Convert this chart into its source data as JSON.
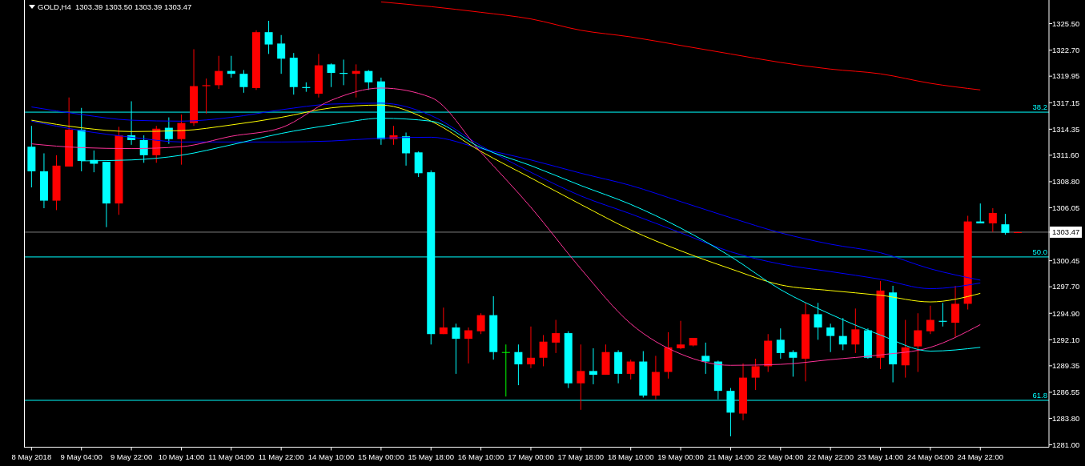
{
  "chart_data": {
    "type": "candlestick",
    "title": "GOLD,H4  1303.39 1303.50 1303.39 1303.47",
    "categories": [
      "8 May 2018",
      null,
      null,
      null,
      "9 May 04:00",
      null,
      null,
      null,
      "9 May 22:00",
      null,
      null,
      null,
      "10 May 14:00",
      null,
      null,
      null,
      "11 May 04:00",
      null,
      null,
      null,
      "11 May 22:00",
      null,
      null,
      null,
      "14 May 10:00",
      null,
      null,
      null,
      "15 May 00:00",
      null,
      null,
      null,
      "15 May 18:00",
      null,
      null,
      null,
      "16 May 10:00",
      null,
      null,
      null,
      "17 May 00:00",
      null,
      null,
      null,
      "17 May 18:00",
      null,
      null,
      null,
      "18 May 10:00",
      null,
      null,
      null,
      "19 May 00:00",
      null,
      null,
      null,
      "21 May 14:00",
      null,
      null,
      null,
      "22 May 04:00",
      null,
      null,
      null,
      "22 May 22:00",
      null,
      null,
      null,
      "23 May 14:00",
      null,
      null,
      null,
      "24 May 04:00",
      null,
      null,
      null,
      "24 May 22:00",
      null,
      null,
      null
    ],
    "ohlc": [
      [
        1312.5,
        1314.7,
        1308.2,
        1309.9
      ],
      [
        1309.9,
        1311.8,
        1306.0,
        1306.8
      ],
      [
        1306.8,
        1311.6,
        1305.8,
        1310.5
      ],
      [
        1310.4,
        1317.7,
        1310.4,
        1314.3
      ],
      [
        1314.3,
        1316.6,
        1309.9,
        1311.0
      ],
      [
        1311.1,
        1312.1,
        1309.8,
        1310.7
      ],
      [
        1310.9,
        1310.9,
        1304.0,
        1306.5
      ],
      [
        1306.5,
        1314.6,
        1305.3,
        1313.7
      ],
      [
        1313.7,
        1317.3,
        1312.7,
        1313.2
      ],
      [
        1313.2,
        1313.7,
        1310.8,
        1311.6
      ],
      [
        1311.6,
        1314.7,
        1310.8,
        1314.4
      ],
      [
        1314.5,
        1315.6,
        1312.8,
        1313.3
      ],
      [
        1313.3,
        1315.9,
        1310.6,
        1315.0
      ],
      [
        1315.0,
        1322.8,
        1314.7,
        1318.9
      ],
      [
        1318.9,
        1319.7,
        1316.0,
        1319.0
      ],
      [
        1319.0,
        1322.1,
        1318.6,
        1320.5
      ],
      [
        1320.5,
        1322.1,
        1319.8,
        1320.2
      ],
      [
        1320.2,
        1320.6,
        1318.2,
        1318.8
      ],
      [
        1318.7,
        1324.8,
        1318.5,
        1324.6
      ],
      [
        1324.6,
        1325.8,
        1322.3,
        1323.3
      ],
      [
        1323.4,
        1324.3,
        1320.2,
        1321.8
      ],
      [
        1321.9,
        1322.4,
        1318.0,
        1318.8
      ],
      [
        1318.8,
        1319.3,
        1318.3,
        1318.7
      ],
      [
        1318.1,
        1322.3,
        1317.7,
        1321.1
      ],
      [
        1321.2,
        1321.3,
        1318.8,
        1320.3
      ],
      [
        1320.3,
        1321.7,
        1319.0,
        1320.2
      ],
      [
        1320.2,
        1321.2,
        1317.7,
        1320.5
      ],
      [
        1320.5,
        1320.6,
        1318.5,
        1319.3
      ],
      [
        1319.4,
        1319.8,
        1312.7,
        1313.3
      ],
      [
        1313.3,
        1314.7,
        1312.7,
        1313.7
      ],
      [
        1313.6,
        1314.0,
        1310.5,
        1311.8
      ],
      [
        1311.9,
        1312.0,
        1309.3,
        1309.7
      ],
      [
        1309.8,
        1310.0,
        1291.6,
        1292.7
      ],
      [
        1292.7,
        1295.5,
        1292.7,
        1293.4
      ],
      [
        1293.4,
        1293.8,
        1288.5,
        1292.2
      ],
      [
        1292.2,
        1293.4,
        1289.6,
        1293.1
      ],
      [
        1293.0,
        1294.9,
        1292.7,
        1294.7
      ],
      [
        1294.7,
        1296.7,
        1290.0,
        1290.8
      ],
      [
        1290.8,
        1291.6,
        1286.1,
        1290.8
      ],
      [
        1290.8,
        1291.6,
        1287.3,
        1289.5
      ],
      [
        1289.5,
        1293.5,
        1289.1,
        1290.2
      ],
      [
        1290.2,
        1292.6,
        1289.3,
        1291.9
      ],
      [
        1291.8,
        1294.2,
        1290.7,
        1292.8
      ],
      [
        1292.8,
        1293.0,
        1287.0,
        1287.5
      ],
      [
        1287.5,
        1291.6,
        1284.7,
        1288.8
      ],
      [
        1288.8,
        1291.2,
        1287.4,
        1288.4
      ],
      [
        1288.4,
        1291.6,
        1288.4,
        1290.8
      ],
      [
        1290.8,
        1291.0,
        1287.5,
        1288.5
      ],
      [
        1288.5,
        1290.0,
        1287.9,
        1289.8
      ],
      [
        1289.8,
        1290.9,
        1286.0,
        1286.2
      ],
      [
        1286.2,
        1290.4,
        1285.8,
        1288.7
      ],
      [
        1288.7,
        1292.9,
        1288.0,
        1291.3
      ],
      [
        1291.2,
        1294.1,
        1291.1,
        1291.6
      ],
      [
        1291.5,
        1292.3,
        1291.4,
        1292.3
      ],
      [
        1290.4,
        1291.8,
        1288.5,
        1289.8
      ],
      [
        1289.8,
        1289.9,
        1285.8,
        1286.7
      ],
      [
        1286.7,
        1287.0,
        1281.9,
        1284.4
      ],
      [
        1284.3,
        1289.6,
        1283.6,
        1288.1
      ],
      [
        1288.1,
        1290.1,
        1286.8,
        1289.3
      ],
      [
        1289.3,
        1292.7,
        1288.7,
        1292.0
      ],
      [
        1292.1,
        1293.3,
        1290.1,
        1290.7
      ],
      [
        1290.8,
        1291.0,
        1288.2,
        1290.2
      ],
      [
        1290.1,
        1296.0,
        1287.7,
        1294.8
      ],
      [
        1294.8,
        1296.0,
        1292.1,
        1293.4
      ],
      [
        1293.4,
        1293.8,
        1290.8,
        1292.5
      ],
      [
        1292.5,
        1294.4,
        1291.0,
        1291.6
      ],
      [
        1291.6,
        1295.4,
        1290.7,
        1293.2
      ],
      [
        1293.1,
        1293.3,
        1290.1,
        1290.2
      ],
      [
        1290.2,
        1298.3,
        1289.0,
        1297.3
      ],
      [
        1297.1,
        1297.8,
        1287.6,
        1289.5
      ],
      [
        1289.4,
        1294.2,
        1288.1,
        1291.3
      ],
      [
        1291.4,
        1294.9,
        1288.7,
        1293.1
      ],
      [
        1293.0,
        1295.7,
        1292.7,
        1294.2
      ],
      [
        1294.1,
        1296.0,
        1293.5,
        1294.0
      ],
      [
        1293.9,
        1297.8,
        1292.4,
        1295.9
      ],
      [
        1295.9,
        1305.2,
        1295.3,
        1304.6
      ],
      [
        1304.6,
        1306.5,
        1304.4,
        1304.4
      ],
      [
        1304.4,
        1306.0,
        1303.5,
        1305.5
      ],
      [
        1304.3,
        1305.4,
        1303.2,
        1303.4
      ],
      [
        1303.39,
        1303.5,
        1303.39,
        1303.47
      ]
    ],
    "colors": [
      "#00ffff",
      "#00ffff",
      "#ff0000",
      "#ff0000",
      "#00ffff",
      "#00ffff",
      "#00ffff",
      "#ff0000",
      "#00ffff",
      "#00ffff",
      "#ff0000",
      "#00ffff",
      "#ff0000",
      "#ff0000",
      "#ff0000",
      "#ff0000",
      "#00ffff",
      "#00ffff",
      "#ff0000",
      "#00ffff",
      "#00ffff",
      "#00ffff",
      "#00ffff",
      "#ff0000",
      "#00ffff",
      "#00ffff",
      "#ff0000",
      "#00ffff",
      "#00ffff",
      "#ff0000",
      "#00ffff",
      "#00ffff",
      "#00ffff",
      "#ff0000",
      "#00ffff",
      "#ff0000",
      "#ff0000",
      "#00ffff",
      "#00ff00",
      "#00ffff",
      "#ff0000",
      "#ff0000",
      "#ff0000",
      "#00ffff",
      "#ff0000",
      "#00ffff",
      "#ff0000",
      "#00ffff",
      "#ff0000",
      "#00ffff",
      "#ff0000",
      "#ff0000",
      "#ff0000",
      "#ff0000",
      "#00ffff",
      "#00ffff",
      "#00ffff",
      "#ff0000",
      "#ff0000",
      "#ff0000",
      "#00ffff",
      "#00ffff",
      "#ff0000",
      "#00ffff",
      "#00ffff",
      "#00ffff",
      "#ff0000",
      "#00ffff",
      "#ff0000",
      "#00ffff",
      "#ff0000",
      "#ff0000",
      "#ff0000",
      "#00ffff",
      "#ff0000",
      "#ff0000",
      "#00ffff",
      "#ff0000",
      "#00ffff",
      "#ff0000"
    ],
    "series": [
      {
        "type": "line",
        "color": "#ff0000",
        "x": [
          "15 May 00:00",
          "15 May 18:00",
          "16 May 10:00",
          "17 May 00:00",
          "17 May 18:00",
          "18 May 10:00",
          "19 May 00:00",
          "21 May 14:00",
          "22 May 04:00",
          "22 May 22:00",
          "23 May 14:00",
          "24 May 04:00",
          "24 May 22:00"
        ],
        "values": [
          1327.8,
          1327.3,
          1326.7,
          1326.0,
          1324.8,
          1324.1,
          1323.2,
          1322.3,
          1321.4,
          1320.7,
          1320.2,
          1319.2,
          1318.5
        ]
      },
      {
        "type": "line",
        "color": "#0000ff",
        "x": [
          "8 May 2018",
          "9 May 04:00",
          "9 May 22:00",
          "10 May 14:00",
          "11 May 04:00",
          "11 May 22:00",
          "14 May 10:00",
          "15 May 00:00",
          "15 May 18:00",
          "16 May 10:00",
          "17 May 00:00",
          "17 May 18:00",
          "18 May 10:00",
          "19 May 00:00",
          "21 May 14:00",
          "22 May 04:00",
          "22 May 22:00",
          "23 May 14:00",
          "24 May 04:00",
          "24 May 22:00"
        ],
        "values": [
          1316.7,
          1315.9,
          1315.3,
          1315.2,
          1315.6,
          1316.4,
          1317.0,
          1317.1,
          1315.8,
          1312.6,
          1309.8,
          1307.3,
          1305.4,
          1303.4,
          1301.4,
          1300.1,
          1299.3,
          1298.5,
          1297.5,
          1298.1
        ]
      },
      {
        "type": "line",
        "color": "#0000ff",
        "x": [
          "8 May 2018",
          "9 May 04:00",
          "9 May 22:00",
          "10 May 14:00",
          "11 May 04:00",
          "11 May 22:00",
          "14 May 10:00",
          "15 May 00:00",
          "15 May 18:00",
          "16 May 10:00",
          "17 May 00:00",
          "17 May 18:00",
          "18 May 10:00",
          "19 May 00:00",
          "21 May 14:00",
          "22 May 04:00",
          "22 May 22:00",
          "23 May 14:00",
          "24 May 04:00",
          "24 May 22:00"
        ],
        "values": [
          1315.2,
          1314.2,
          1313.5,
          1313.0,
          1313.0,
          1313.0,
          1313.1,
          1313.4,
          1313.5,
          1312.3,
          1311.1,
          1309.7,
          1308.4,
          1306.7,
          1305.0,
          1303.4,
          1302.2,
          1301.3,
          1299.6,
          1298.4
        ]
      },
      {
        "type": "line",
        "color": "#ffff00",
        "x": [
          "8 May 2018",
          "9 May 04:00",
          "9 May 22:00",
          "10 May 14:00",
          "11 May 04:00",
          "11 May 22:00",
          "14 May 10:00",
          "15 May 00:00",
          "15 May 18:00",
          "16 May 10:00",
          "17 May 00:00",
          "17 May 18:00",
          "18 May 10:00",
          "19 May 00:00",
          "21 May 14:00",
          "22 May 04:00",
          "22 May 22:00",
          "23 May 14:00",
          "24 May 04:00",
          "24 May 22:00"
        ],
        "values": [
          1315.3,
          1314.5,
          1314.1,
          1314.2,
          1314.8,
          1315.6,
          1316.6,
          1316.9,
          1315.2,
          1312.0,
          1309.2,
          1306.4,
          1303.7,
          1301.5,
          1299.6,
          1297.9,
          1297.3,
          1296.8,
          1296.1,
          1297.0
        ]
      },
      {
        "type": "line",
        "color": "#ff3399",
        "x": [
          "8 May 2018",
          "9 May 04:00",
          "9 May 22:00",
          "10 May 14:00",
          "11 May 04:00",
          "11 May 22:00",
          "14 May 10:00",
          "15 May 00:00",
          "15 May 18:00",
          "16 May 10:00",
          "17 May 00:00",
          "17 May 18:00",
          "18 May 10:00",
          "19 May 00:00",
          "21 May 14:00",
          "22 May 04:00",
          "22 May 22:00",
          "23 May 14:00",
          "24 May 04:00",
          "24 May 22:00"
        ],
        "values": [
          1312.8,
          1312.4,
          1312.3,
          1312.5,
          1313.6,
          1314.5,
          1317.4,
          1318.7,
          1317.7,
          1311.9,
          1306.1,
          1299.6,
          1293.8,
          1290.6,
          1289.4,
          1289.5,
          1290.0,
          1290.5,
          1291.3,
          1293.7
        ]
      },
      {
        "type": "line",
        "color": "#00ffff",
        "x": [
          "9 May 04:00",
          "9 May 22:00",
          "10 May 14:00",
          "11 May 04:00",
          "11 May 22:00",
          "14 May 10:00",
          "15 May 00:00",
          "15 May 18:00",
          "16 May 10:00",
          "17 May 00:00",
          "17 May 18:00",
          "18 May 10:00",
          "19 May 00:00",
          "21 May 14:00",
          "22 May 04:00",
          "22 May 22:00",
          "23 May 14:00",
          "24 May 04:00",
          "24 May 22:00"
        ],
        "values": [
          1311.0,
          1311.1,
          1311.6,
          1312.7,
          1313.9,
          1314.8,
          1315.5,
          1315.2,
          1312.4,
          1310.5,
          1308.4,
          1306.4,
          1303.9,
          1300.9,
          1297.4,
          1294.8,
          1292.6,
          1290.9,
          1291.3
        ]
      }
    ],
    "ylim": [
      1280.75,
      1328.0
    ],
    "yticks": [
      {
        "value": 1325.5,
        "label": "1325.50"
      },
      {
        "value": 1322.7,
        "label": "1322.70"
      },
      1319.95,
      1317.15,
      1314.35,
      {
        "value": 1311.6,
        "label": "1311.60"
      },
      {
        "value": 1308.8,
        "label": "1308.80"
      },
      1306.05,
      1303.47,
      1300.45,
      {
        "value": 1297.7,
        "label": "1297.70"
      },
      {
        "value": 1294.9,
        "label": "1294.90"
      },
      {
        "value": 1292.1,
        "label": "1292.10"
      },
      1289.35,
      1286.55,
      {
        "value": 1283.8,
        "label": "1283.80"
      },
      {
        "value": 1281.0,
        "label": "1281.00"
      }
    ],
    "ref_lines": [
      {
        "axis": "y",
        "value": 1316.15,
        "color": "#00ffff"
      },
      {
        "axis": "y",
        "value": 1300.85,
        "color": "#00ffff"
      },
      {
        "axis": "y",
        "value": 1285.7,
        "color": "#00ffff"
      },
      {
        "axis": "y",
        "value": 1303.47,
        "color": "#808080"
      }
    ],
    "annotations": [
      {
        "text": "38.2",
        "y": 1316.15
      },
      {
        "text": "50.0",
        "y": 1300.85
      },
      {
        "text": "61.8",
        "y": 1285.7
      }
    ]
  }
}
